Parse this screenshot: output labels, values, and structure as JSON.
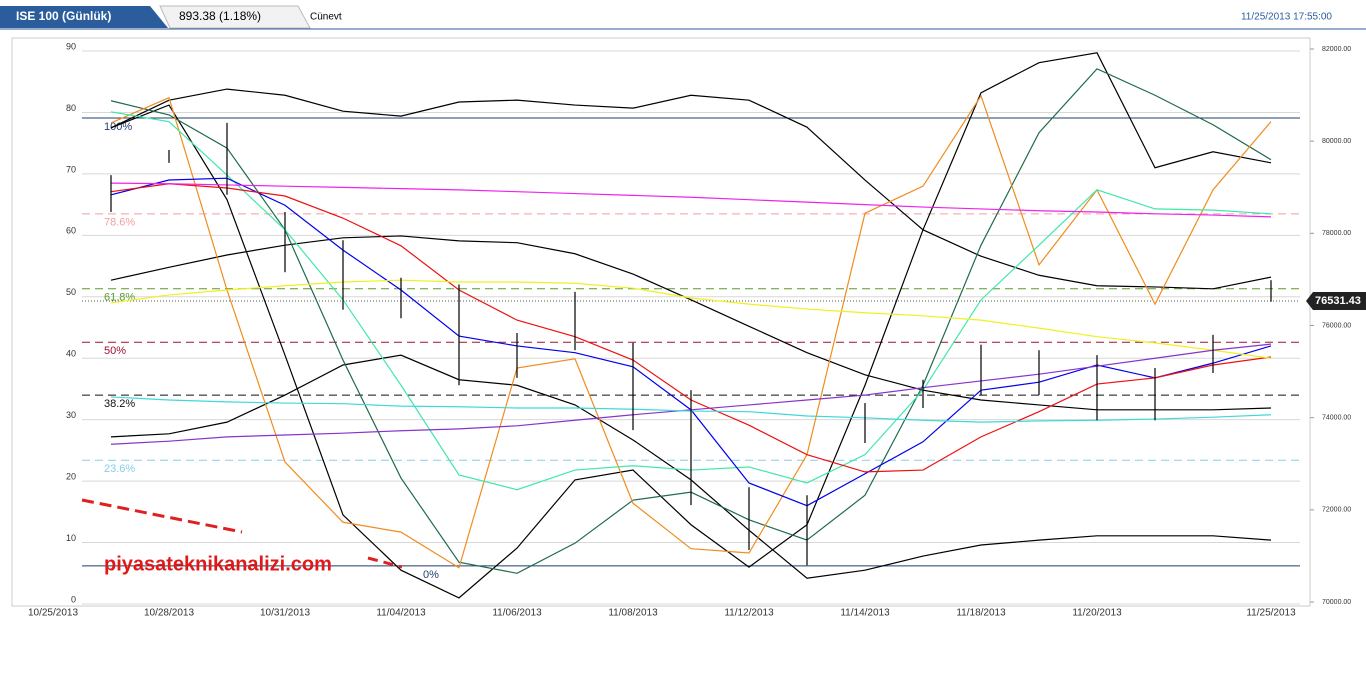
{
  "header": {
    "tab": "ISE 100 (Günlük)",
    "quote": "893.38 (1.18%)",
    "user": "Cünevt",
    "datetime": "11/25/2013 17:55:00"
  },
  "chart_data": {
    "type": "line",
    "annotation": "piyasateknikanalizi.com",
    "categories": [
      "10/25/2013",
      null,
      "10/28/2013",
      null,
      "10/31/2013",
      null,
      "11/04/2013",
      null,
      "11/06/2013",
      null,
      "11/08/2013",
      null,
      "11/12/2013",
      null,
      "11/14/2013",
      null,
      "11/18/2013",
      null,
      "11/20/2013",
      null,
      null,
      "11/25/2013"
    ],
    "ylim": [
      0,
      90
    ],
    "yticks": [
      0,
      10,
      20,
      30,
      40,
      50,
      60,
      70,
      80,
      90
    ],
    "y2lim": [
      70000,
      82000
    ],
    "y2ticks": [
      {
        "value": 70000,
        "label": "70000.00"
      },
      {
        "value": 72000,
        "label": "72000.00"
      },
      {
        "value": 74000,
        "label": "74000.00"
      },
      {
        "value": 76000,
        "label": "76000.00"
      },
      {
        "value": 78000,
        "label": "78000.00"
      },
      {
        "value": 80000,
        "label": "80000.00"
      },
      {
        "value": 82000,
        "label": "82000.00"
      }
    ],
    "last_price": 76531.43,
    "grid": true,
    "levels": [
      {
        "label": "100%",
        "value": 79.1,
        "color": "#1f3f6e",
        "dashed": false
      },
      {
        "label": "78.6%",
        "value": 63.5,
        "color": "#f0a0a0",
        "dashed": true
      },
      {
        "label": "61.8%",
        "value": 51.3,
        "color": "#5a9a2a",
        "dashed": true
      },
      {
        "label": "50%",
        "value": 42.6,
        "color": "#a01030",
        "dashed": true
      },
      {
        "label": "38.2%",
        "value": 34,
        "color": "#111111",
        "dashed": true
      },
      {
        "label": "23.6%",
        "value": 23.4,
        "color": "#88ccee",
        "dashed": true
      },
      {
        "label": "0%",
        "value": 6.2,
        "color": "#1f3f6e",
        "dashed": false
      }
    ],
    "candles": {
      "color": "#000000",
      "high": [
        null,
        69.8,
        73.9,
        78.3,
        63.8,
        59.2,
        53.1,
        52,
        44.1,
        50.8,
        42.5,
        34.8,
        19,
        17.7,
        32.7,
        36.5,
        42.2,
        41.3,
        40.5,
        38.4,
        43.8,
        52.7
      ],
      "low": [
        null,
        63.8,
        71.8,
        66.6,
        54,
        47.9,
        46.5,
        35.6,
        36.8,
        41.3,
        28.3,
        16.1,
        8.8,
        6.3,
        26.2,
        31.9,
        34,
        34,
        29.9,
        29.9,
        37.6,
        49.2
      ]
    },
    "series": [
      {
        "color": "#000000",
        "values": [
          null,
          77.5,
          82,
          83.8,
          82.8,
          80.2,
          79.4,
          81.7,
          82,
          81.2,
          80.7,
          82.8,
          82,
          77.6,
          69,
          60.9,
          56.6,
          53.5,
          51.8,
          51.6,
          51.3,
          53.2
        ]
      },
      {
        "color": "#000000",
        "values": [
          null,
          52.7,
          54.8,
          56.8,
          58.4,
          59.6,
          59.9,
          59.1,
          58.8,
          57,
          53.7,
          49.5,
          45.2,
          40.9,
          37.3,
          34.8,
          33.2,
          32.4,
          31.6,
          31.6,
          31.6,
          31.9
        ]
      },
      {
        "color": "#000000",
        "values": [
          null,
          27.2,
          27.7,
          29.6,
          34,
          38.9,
          40.5,
          36.5,
          35.6,
          32.4,
          26.7,
          20.2,
          12,
          4.2,
          5.5,
          7.8,
          9.6,
          10.4,
          11.1,
          11.1,
          11.1,
          10.4
        ]
      },
      {
        "color": "#000000",
        "values": [
          null,
          77.5,
          81.2,
          65.8,
          40.5,
          14.5,
          5.5,
          1,
          9.1,
          20.2,
          21.8,
          12.9,
          6,
          12.9,
          35.6,
          60.9,
          83.2,
          88.1,
          89.7,
          71,
          73.6,
          71.8
        ]
      },
      {
        "color": "#1e6b4a",
        "values": [
          null,
          81.9,
          79.6,
          74.2,
          60.9,
          39.7,
          20.5,
          6.8,
          5,
          9.9,
          16.9,
          18.2,
          13.7,
          10.4,
          17.7,
          35.6,
          58.4,
          76.7,
          87.1,
          82.8,
          78,
          72.3
        ]
      },
      {
        "color": "#f08c1e",
        "values": [
          null,
          78.3,
          82.4,
          51.1,
          23.1,
          13.3,
          11.7,
          5.9,
          38.4,
          39.9,
          16.4,
          9,
          8.3,
          24.3,
          63.6,
          68,
          82.7,
          55.2,
          67.4,
          48.8,
          67.4,
          78.5
        ]
      },
      {
        "color": "#40e8a8",
        "values": [
          null,
          80.1,
          78.5,
          69.8,
          60.9,
          49.5,
          35.6,
          21,
          18.6,
          21.8,
          22.5,
          21.8,
          22.3,
          19.7,
          24.3,
          34.8,
          49.5,
          58.4,
          67.4,
          64.3,
          64.1,
          63.5
        ]
      },
      {
        "color": "#0000ee",
        "values": [
          null,
          66.6,
          69,
          69.3,
          64.9,
          57.6,
          51.1,
          43.6,
          42,
          40.9,
          38.6,
          31.6,
          19.7,
          16,
          21.2,
          26.4,
          34.8,
          36.1,
          38.9,
          36.8,
          39.2,
          42
        ]
      },
      {
        "color": "#ee1111",
        "values": [
          null,
          67.1,
          68.4,
          67.7,
          66.4,
          62.8,
          58.3,
          51.1,
          46.2,
          43.5,
          39.7,
          33.2,
          29.1,
          24.3,
          21.5,
          21.8,
          27.2,
          31.3,
          35.8,
          36.8,
          38.9,
          40.2
        ]
      },
      {
        "color": "#ee22ee",
        "values": [
          null,
          68.5,
          68.4,
          68.2,
          68,
          67.8,
          67.6,
          67.4,
          67.1,
          66.8,
          66.5,
          66.2,
          65.8,
          65.4,
          65,
          64.6,
          64.3,
          64,
          63.8,
          63.5,
          63.3,
          63
        ]
      },
      {
        "color": "#f0f020",
        "values": [
          null,
          49,
          50.3,
          51.1,
          51.8,
          52.4,
          52.7,
          52.4,
          52.4,
          52.2,
          51.4,
          49.8,
          48.8,
          48,
          47.4,
          46.9,
          46.2,
          44.9,
          43.5,
          42.5,
          41.3,
          40
        ]
      },
      {
        "color": "#8833cc",
        "values": [
          null,
          26,
          26.5,
          27.2,
          27.5,
          27.8,
          28.2,
          28.5,
          29,
          29.9,
          30.8,
          31.6,
          32.4,
          33.2,
          34,
          35.2,
          36.3,
          37.4,
          38.7,
          40,
          41.3,
          42.3
        ]
      },
      {
        "color": "#40d8d8",
        "values": [
          null,
          33.7,
          33.2,
          32.9,
          32.7,
          32.6,
          32.2,
          32.1,
          31.9,
          31.9,
          31.7,
          31.4,
          31.3,
          30.6,
          30.3,
          29.9,
          29.6,
          29.8,
          29.9,
          30.1,
          30.4,
          30.8
        ]
      }
    ]
  }
}
